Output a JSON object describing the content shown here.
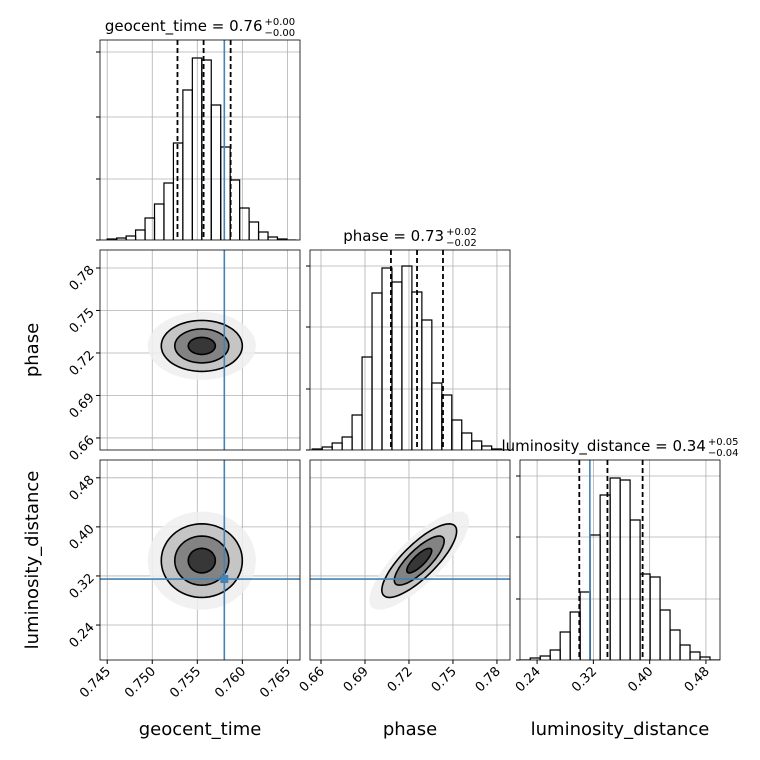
{
  "chart_data": {
    "type": "corner",
    "truth_color": "#4682b4",
    "grid": true,
    "variables": [
      {
        "name": "geocent_time",
        "title": "geocent_time = 0.76",
        "title_sup": "+0.00",
        "title_sub": "−0.00",
        "xlim": [
          0.7442,
          0.7664
        ],
        "xticks": [
          0.745,
          {
            "value": 0.75,
            "label": "0.750"
          },
          0.755,
          {
            "value": 0.76,
            "label": "0.760"
          },
          0.765
        ],
        "bins": [
          0.745,
          0.74605,
          0.7471,
          0.74815,
          0.7492,
          0.75025,
          0.7513,
          0.75235,
          0.7534,
          0.75445,
          0.7555,
          0.75655,
          0.7576,
          0.75865,
          0.7597,
          0.76075,
          0.7618,
          0.76285,
          0.7639,
          0.76495,
          0.766
        ],
        "counts": [
          1,
          2,
          4,
          10,
          22,
          36,
          57,
          97,
          150,
          182,
          180,
          135,
          93,
          60,
          32,
          18,
          8,
          3,
          1,
          0
        ],
        "hist_ylim": [
          0,
          200
        ],
        "hist_yticks": [
          0,
          61,
          123,
          188
        ],
        "quantiles": [
          0.7528,
          0.7557,
          0.7587
        ],
        "truth": 0.758
      },
      {
        "name": "phase",
        "title": "phase = 0.73",
        "title_sup": "+0.02",
        "title_sub": "−0.02",
        "xlim": [
          0.6525,
          0.7889
        ],
        "ylim": [
          0.6515,
          0.7927
        ],
        "xticks": [
          0.66,
          0.69,
          0.72,
          0.75,
          0.78
        ],
        "bins": [
          0.654,
          0.6608,
          0.6676,
          0.6744,
          0.6812,
          0.688,
          0.6948,
          0.7016,
          0.7084,
          0.7152,
          0.722,
          0.7288,
          0.7356,
          0.7424,
          0.7492,
          0.756,
          0.7628,
          0.7696,
          0.7764,
          0.7832,
          0.79
        ],
        "counts": [
          1,
          3,
          7,
          13,
          35,
          93,
          157,
          182,
          168,
          184,
          158,
          130,
          67,
          55,
          30,
          17,
          9,
          4,
          1,
          0
        ],
        "hist_ylim": [
          0,
          200
        ],
        "hist_yticks": [
          0,
          61,
          123,
          184
        ],
        "quantiles": [
          0.7077,
          0.7255,
          0.7432
        ],
        "truth": null
      },
      {
        "name": "luminosity_distance",
        "title": "luminosity_distance = 0.34",
        "title_sup": "+0.05",
        "title_sub": "−0.04",
        "xlim": [
          0.2157,
          0.5
        ],
        "ylim": [
          0.183,
          0.509
        ],
        "xticks": [
          0.24,
          0.32,
          {
            "value": 0.4,
            "label": "0.40"
          },
          0.48
        ],
        "bins": [
          0.216,
          0.2302,
          0.2444,
          0.2586,
          0.2728,
          0.287,
          0.3012,
          0.3154,
          0.3296,
          0.3438,
          0.358,
          0.3722,
          0.3864,
          0.4006,
          0.4148,
          0.429,
          0.4432,
          0.4574,
          0.4716,
          0.4858,
          0.5
        ],
        "counts": [
          0,
          2,
          4,
          10,
          28,
          48,
          68,
          125,
          165,
          182,
          180,
          140,
          86,
          83,
          50,
          30,
          15,
          8,
          3,
          0
        ],
        "hist_ylim": [
          0,
          200
        ],
        "hist_yticks": [
          0,
          61,
          123,
          184
        ],
        "quantiles": [
          0.3,
          0.34,
          0.39
        ],
        "truth": 0.315
      }
    ],
    "pairs": [
      {
        "x": 0,
        "y": 1,
        "mean": [
          0.7555,
          0.725
        ],
        "sd": [
          0.003,
          0.012
        ],
        "corr": 0,
        "levels": [
          2,
          1.5,
          1,
          0.5
        ]
      },
      {
        "x": 0,
        "y": 2,
        "mean": [
          0.7555,
          0.345
        ],
        "sd": [
          0.003,
          0.04
        ],
        "corr": 0,
        "levels": [
          2,
          1.5,
          1,
          0.5
        ]
      },
      {
        "x": 1,
        "y": 2,
        "mean": [
          0.727,
          0.345
        ],
        "sd": [
          0.017,
          0.04
        ],
        "corr": 0.8,
        "levels": [
          2,
          1.5,
          1,
          0.5
        ]
      }
    ]
  }
}
